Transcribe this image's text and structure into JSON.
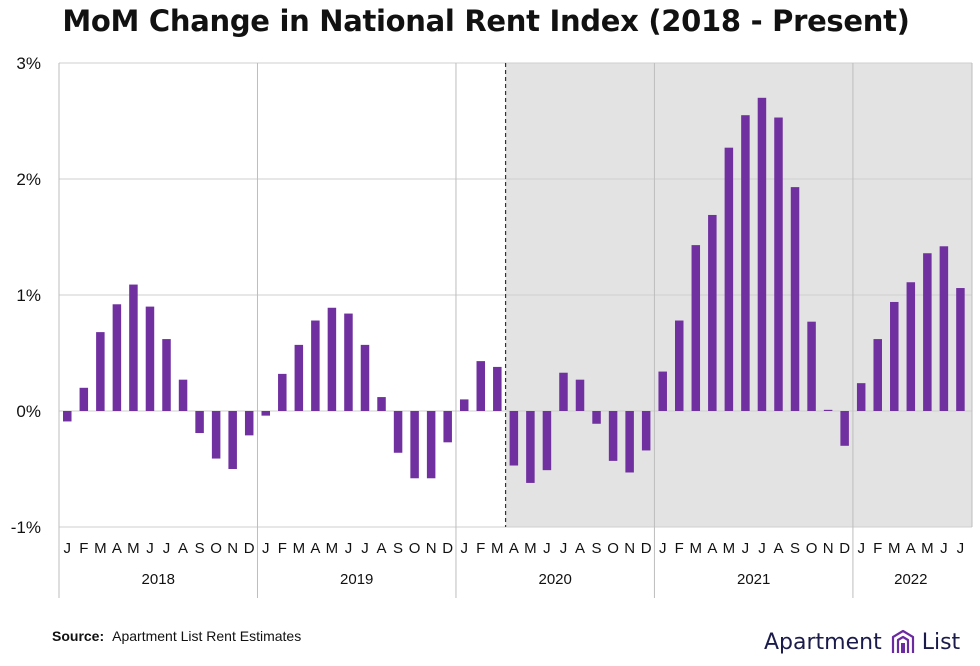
{
  "title": "MoM Change in National Rent Index (2018 - Present)",
  "source": {
    "label": "Source:",
    "text": "Apartment List Rent Estimates"
  },
  "brand": {
    "name": "Apartment",
    "suffix": "List"
  },
  "colors": {
    "bar": "#7030a0",
    "shade": "#e3e3e3",
    "grid": "#cfcfcf",
    "text": "#111111"
  },
  "chart_data": {
    "type": "bar",
    "ylim": [
      -1,
      3
    ],
    "yticks": [
      {
        "value": -1,
        "label": "-1%"
      },
      {
        "value": 0,
        "label": "0%"
      },
      {
        "value": 1,
        "label": "1%"
      },
      {
        "value": 2,
        "label": "2%"
      },
      {
        "value": 3,
        "label": "3%"
      }
    ],
    "shaded_from": "2020-04",
    "shaded_style": "gray background with dashed start line",
    "grid": true,
    "years": [
      {
        "label": "2018",
        "months": [
          "J",
          "F",
          "M",
          "A",
          "M",
          "J",
          "J",
          "A",
          "S",
          "O",
          "N",
          "D"
        ],
        "values": [
          -0.09,
          0.2,
          0.68,
          0.92,
          1.09,
          0.9,
          0.62,
          0.27,
          -0.19,
          -0.41,
          -0.5,
          -0.21
        ]
      },
      {
        "label": "2019",
        "months": [
          "J",
          "F",
          "M",
          "A",
          "M",
          "J",
          "J",
          "A",
          "S",
          "O",
          "N",
          "D"
        ],
        "values": [
          -0.04,
          0.32,
          0.57,
          0.78,
          0.89,
          0.84,
          0.57,
          0.12,
          -0.36,
          -0.58,
          -0.58,
          -0.27
        ]
      },
      {
        "label": "2020",
        "months": [
          "J",
          "F",
          "M",
          "A",
          "M",
          "J",
          "J",
          "A",
          "S",
          "O",
          "N",
          "D"
        ],
        "values": [
          0.1,
          0.43,
          0.38,
          -0.47,
          -0.62,
          -0.51,
          0.33,
          0.27,
          -0.11,
          -0.43,
          -0.53,
          -0.34
        ]
      },
      {
        "label": "2021",
        "months": [
          "J",
          "F",
          "M",
          "A",
          "M",
          "J",
          "J",
          "A",
          "S",
          "O",
          "N",
          "D"
        ],
        "values": [
          0.34,
          0.78,
          1.43,
          1.69,
          2.27,
          2.55,
          2.7,
          2.53,
          1.93,
          0.77,
          0.01,
          -0.3
        ]
      },
      {
        "label": "2022",
        "months": [
          "J",
          "F",
          "M",
          "A",
          "M",
          "J",
          "J"
        ],
        "values": [
          0.24,
          0.62,
          0.94,
          1.11,
          1.36,
          1.42,
          1.06
        ]
      }
    ]
  }
}
